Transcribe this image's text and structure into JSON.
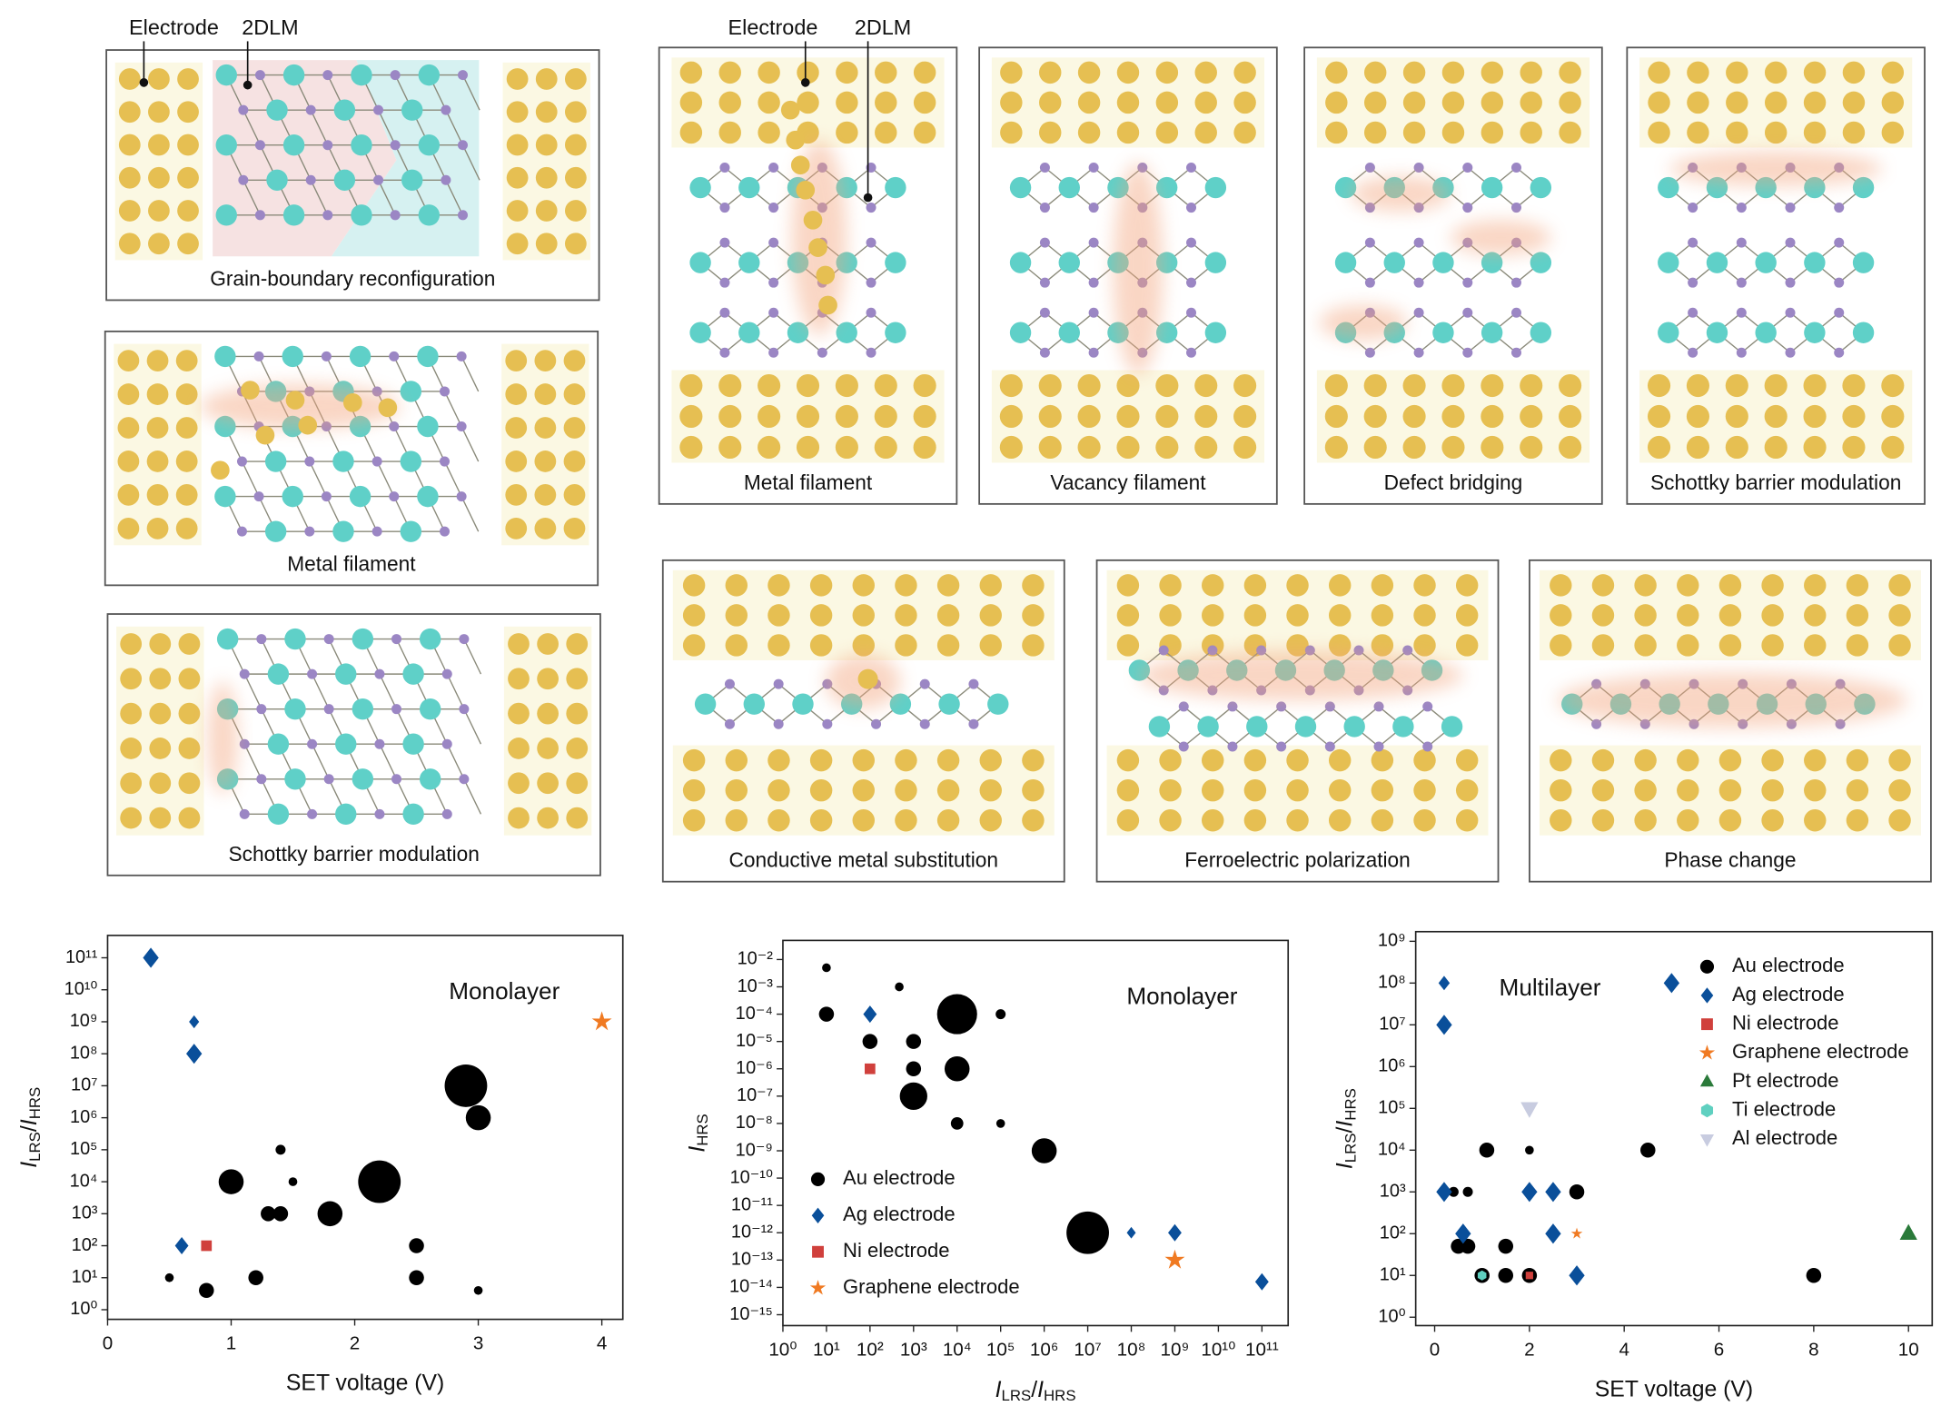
{
  "diagrams": {
    "panels": [
      {
        "caption": "Grain-boundary reconfiguration",
        "callouts": [
          "Electrode",
          "2DLM"
        ]
      },
      {
        "caption": "Metal filament"
      },
      {
        "caption": "Schottky barrier modulation"
      },
      {
        "caption": "Metal filament",
        "callouts": [
          "Electrode",
          "2DLM"
        ]
      },
      {
        "caption": "Vacancy filament"
      },
      {
        "caption": "Defect bridging"
      },
      {
        "caption": "Schottky barrier modulation"
      },
      {
        "caption": "Conductive metal substitution"
      },
      {
        "caption": "Ferroelectric polarization"
      },
      {
        "caption": "Phase change"
      }
    ]
  },
  "chart_data": [
    {
      "type": "scatter",
      "annotation": "Monolayer",
      "xlabel": "SET voltage (V)",
      "ylabel": [
        {
          "text": "I",
          "italic": true
        },
        {
          "text": "LRS",
          "sub": true
        },
        {
          "text": "/"
        },
        {
          "text": "I",
          "italic": true
        },
        {
          "text": "HRS",
          "sub": true
        }
      ],
      "xscale": "linear",
      "yscale": "log",
      "xlim": [
        0,
        4.17
      ],
      "ylim": [
        0.5,
        500000000000.0
      ],
      "xticks": [
        0,
        1,
        2,
        3,
        4
      ],
      "yticks": [
        {
          "value": 1,
          "label": "10⁰"
        },
        {
          "value": 10,
          "label": "10¹"
        },
        {
          "value": 100,
          "label": "10²"
        },
        {
          "value": 1000,
          "label": "10³"
        },
        {
          "value": 10000,
          "label": "10⁴"
        },
        {
          "value": 100000,
          "label": "10⁵"
        },
        {
          "value": 1000000,
          "label": "10⁶"
        },
        {
          "value": 10000000,
          "label": "10⁷"
        },
        {
          "value": 100000000,
          "label": "10⁸"
        },
        {
          "value": 1000000000,
          "label": "10⁹"
        },
        {
          "value": 10000000000,
          "label": "10¹⁰"
        },
        {
          "value": 100000000000,
          "label": "10¹¹"
        }
      ],
      "series": [
        {
          "color": "#000000",
          "marker": "circle",
          "x": [
            0.6,
            0.5,
            0.8,
            1.2,
            1.0,
            1.4,
            1.5,
            1.3,
            1.4,
            1.8,
            2.2,
            2.9,
            3.0,
            2.5,
            2.5,
            3.0
          ],
          "values": [
            100,
            10,
            4,
            10,
            10000,
            100000,
            10000,
            1000,
            1000,
            1000,
            10000,
            10000000,
            1000000,
            100,
            10,
            4
          ],
          "sizes": [
            4,
            3.5,
            6,
            6,
            10,
            4,
            3.5,
            6,
            6,
            10,
            17,
            17,
            10,
            6,
            6,
            3.5
          ]
        },
        {
          "color": "#0a4f9a",
          "marker": "diamond",
          "x": [
            0.35,
            0.7,
            0.7,
            0.6
          ],
          "values": [
            100000000000,
            1000000000,
            100000000,
            100
          ],
          "sizes": [
            7,
            4.5,
            7,
            6
          ]
        },
        {
          "color": "#d0403c",
          "marker": "square",
          "x": [
            0.8
          ],
          "values": [
            100
          ],
          "sizes": [
            5
          ]
        },
        {
          "color": "#f07a22",
          "marker": "star",
          "x": [
            4
          ],
          "values": [
            1000000000
          ],
          "sizes": [
            7
          ]
        }
      ]
    },
    {
      "type": "scatter",
      "annotation": "Monolayer",
      "xlabel": [
        {
          "text": "I",
          "italic": true
        },
        {
          "text": "LRS",
          "sub": true
        },
        {
          "text": "/"
        },
        {
          "text": "I",
          "italic": true
        },
        {
          "text": "HRS",
          "sub": true
        }
      ],
      "ylabel": [
        {
          "text": "I",
          "italic": true
        },
        {
          "text": "HRS",
          "sub": true
        }
      ],
      "xscale": "log",
      "yscale": "log",
      "xlim": [
        1,
        400000000000.0
      ],
      "ylim": [
        4e-16,
        0.05
      ],
      "xticks": [
        {
          "value": 1,
          "label": "10⁰"
        },
        {
          "value": 10,
          "label": "10¹"
        },
        {
          "value": 100,
          "label": "10²"
        },
        {
          "value": 1000,
          "label": "10³"
        },
        {
          "value": 10000,
          "label": "10⁴"
        },
        {
          "value": 100000,
          "label": "10⁵"
        },
        {
          "value": 1000000,
          "label": "10⁶"
        },
        {
          "value": 10000000,
          "label": "10⁷"
        },
        {
          "value": 100000000,
          "label": "10⁸"
        },
        {
          "value": 1000000000,
          "label": "10⁹"
        },
        {
          "value": 10000000000,
          "label": "10¹⁰"
        },
        {
          "value": 100000000000,
          "label": "10¹¹"
        }
      ],
      "yticks": [
        {
          "value": 0.01,
          "label": "10⁻²"
        },
        {
          "value": 0.001,
          "label": "10⁻³"
        },
        {
          "value": 0.0001,
          "label": "10⁻⁴"
        },
        {
          "value": 1e-05,
          "label": "10⁻⁵"
        },
        {
          "value": 1e-06,
          "label": "10⁻⁶"
        },
        {
          "value": 1e-07,
          "label": "10⁻⁷"
        },
        {
          "value": 1e-08,
          "label": "10⁻⁸"
        },
        {
          "value": 1e-09,
          "label": "10⁻⁹"
        },
        {
          "value": 1e-10,
          "label": "10⁻¹⁰"
        },
        {
          "value": 1e-11,
          "label": "10⁻¹¹"
        },
        {
          "value": 1e-12,
          "label": "10⁻¹²"
        },
        {
          "value": 1e-13,
          "label": "10⁻¹³"
        },
        {
          "value": 1e-14,
          "label": "10⁻¹⁴"
        },
        {
          "value": 1e-15,
          "label": "10⁻¹⁵"
        }
      ],
      "legend": "lower left",
      "series": [
        {
          "name": "Au electrode",
          "color": "#000000",
          "marker": "circle",
          "x": [
            10,
            10,
            470,
            100,
            1000,
            1000,
            1000,
            10000,
            10000,
            10000,
            100000,
            100000,
            1000000,
            10000000
          ],
          "values": [
            0.005,
            0.0001,
            0.001,
            1e-05,
            1e-05,
            1e-06,
            1e-07,
            0.0001,
            1e-06,
            1e-08,
            0.0001,
            1e-08,
            1e-09,
            1e-12
          ],
          "sizes": [
            3.5,
            6,
            3.5,
            6,
            6,
            6,
            11,
            16,
            10,
            5,
            4,
            3.5,
            10,
            17
          ]
        },
        {
          "name": "Ag electrode",
          "color": "#0a4f9a",
          "marker": "diamond",
          "x": [
            100,
            100000000,
            1000000000,
            100000000000
          ],
          "values": [
            0.0001,
            1e-12,
            1e-12,
            1.6e-14
          ],
          "sizes": [
            6,
            4,
            6,
            6
          ]
        },
        {
          "name": "Ni electrode",
          "color": "#d0403c",
          "marker": "square",
          "x": [
            100
          ],
          "values": [
            1e-06
          ],
          "sizes": [
            5
          ]
        },
        {
          "name": "Graphene electrode",
          "color": "#f07a22",
          "marker": "star",
          "x": [
            1000000000
          ],
          "values": [
            1e-13
          ],
          "sizes": [
            7
          ]
        }
      ]
    },
    {
      "type": "scatter",
      "annotation": "Multilayer",
      "xlabel": "SET voltage (V)",
      "ylabel": [
        {
          "text": "I",
          "italic": true
        },
        {
          "text": "LRS",
          "sub": true
        },
        {
          "text": "/"
        },
        {
          "text": "I",
          "italic": true
        },
        {
          "text": "HRS",
          "sub": true
        }
      ],
      "xscale": "linear",
      "yscale": "log",
      "xlim": [
        -0.4,
        10.5
      ],
      "ylim": [
        0.63,
        1700000000.0
      ],
      "xticks": [
        0,
        2,
        4,
        6,
        8,
        10
      ],
      "yticks": [
        {
          "value": 1,
          "label": "10⁰"
        },
        {
          "value": 10,
          "label": "10¹"
        },
        {
          "value": 100,
          "label": "10²"
        },
        {
          "value": 1000,
          "label": "10³"
        },
        {
          "value": 10000,
          "label": "10⁴"
        },
        {
          "value": 100000,
          "label": "10⁵"
        },
        {
          "value": 1000000,
          "label": "10⁶"
        },
        {
          "value": 10000000,
          "label": "10⁷"
        },
        {
          "value": 100000000,
          "label": "10⁸"
        },
        {
          "value": 1000000000,
          "label": "10⁹"
        }
      ],
      "legend": "upper right",
      "series": [
        {
          "name": "Au electrode",
          "color": "#000000",
          "marker": "circle",
          "x": [
            1.1,
            2,
            4.5,
            0.2,
            0.4,
            0.7,
            3,
            0.5,
            0.7,
            1.5,
            1,
            1.5,
            2,
            8
          ],
          "values": [
            10000,
            10000,
            10000,
            1000,
            1000,
            1000,
            1000,
            50,
            50,
            50,
            10,
            10,
            10,
            10
          ],
          "sizes": [
            6,
            3.5,
            6,
            4,
            4,
            4,
            6,
            6,
            6,
            6,
            6,
            6,
            6,
            6
          ]
        },
        {
          "name": "Ag electrode",
          "color": "#0a4f9a",
          "marker": "diamond",
          "x": [
            0.2,
            0.2,
            0.2,
            0.6,
            2,
            2.5,
            2.5,
            3,
            5
          ],
          "values": [
            100000000,
            10000000,
            1000,
            100,
            1000,
            1000,
            100,
            10,
            100000000
          ],
          "sizes": [
            5,
            7,
            7,
            7,
            7,
            7,
            7,
            7,
            7
          ]
        },
        {
          "name": "Ni electrode",
          "color": "#d0403c",
          "marker": "square",
          "x": [
            2
          ],
          "values": [
            10
          ],
          "sizes": [
            3.5
          ]
        },
        {
          "name": "Graphene electrode",
          "color": "#f07a22",
          "marker": "star",
          "x": [
            3
          ],
          "values": [
            100
          ],
          "sizes": [
            4
          ]
        },
        {
          "name": "Pt electrode",
          "color": "#2a7a3a",
          "marker": "triangle",
          "x": [
            10
          ],
          "values": [
            100
          ],
          "sizes": [
            7
          ]
        },
        {
          "name": "Ti electrode",
          "color": "#5fd0c0",
          "marker": "hexagon",
          "x": [
            1
          ],
          "values": [
            10
          ],
          "sizes": [
            4
          ]
        },
        {
          "name": "Al electrode",
          "color": "#c8cce0",
          "marker": "triangle-down",
          "x": [
            2
          ],
          "values": [
            100000
          ],
          "sizes": [
            7
          ]
        }
      ]
    }
  ]
}
